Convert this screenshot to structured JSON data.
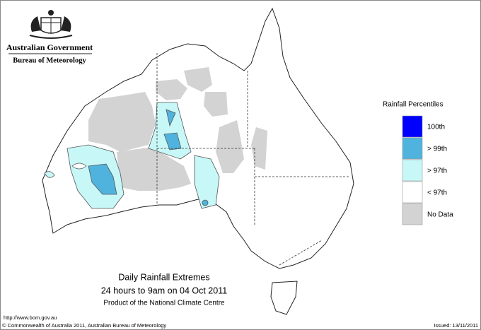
{
  "header": {
    "title": "Australian Government",
    "subtitle": "Bureau of Meteorology"
  },
  "legend": {
    "title": "Rainfall Percentiles",
    "items": [
      {
        "label": "100th",
        "color": "#0000ff"
      },
      {
        "label": "> 99th",
        "color": "#4fb3dd"
      },
      {
        "label": "> 97th",
        "color": "#c8f7f7"
      },
      {
        "label": "< 97th",
        "color": "#ffffff"
      },
      {
        "label": "No Data",
        "color": "#d3d3d3"
      }
    ]
  },
  "caption": {
    "title": "Daily Rainfall Extremes",
    "period": "24 hours to 9am on 04 Oct 2011",
    "product": "Product of the National Climate Centre"
  },
  "footer": {
    "url": "http://www.bom.gov.au",
    "copyright": "© Commonwealth of Australia 2011, Australian Bureau of Meteorology",
    "issued": "Issued: 13/11/2011"
  }
}
